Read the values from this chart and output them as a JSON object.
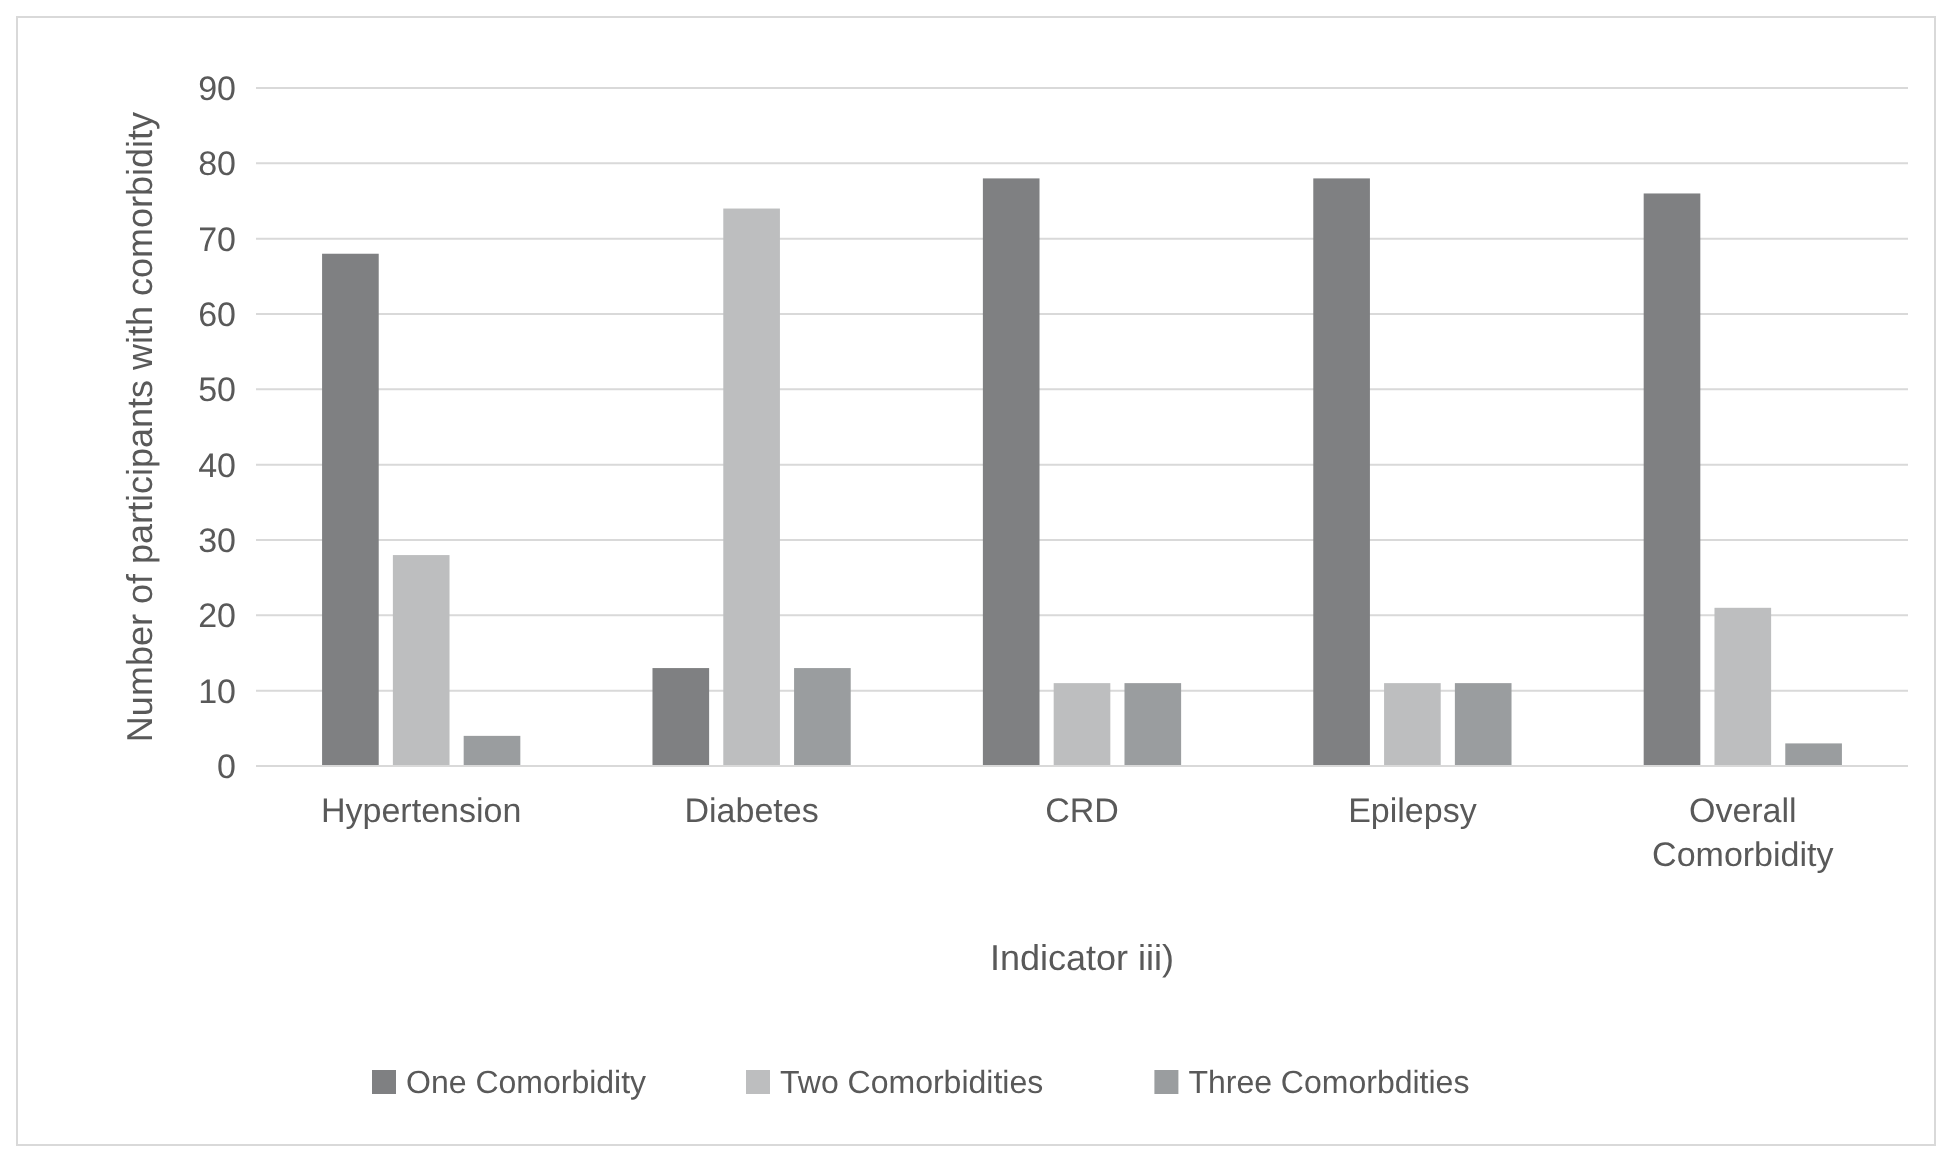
{
  "chart_data": {
    "type": "bar",
    "xlabel": "Indicator iii)",
    "ylabel": "Number of participants with comorbidity",
    "categories": [
      "Hypertension",
      "Diabetes",
      "CRD",
      "Epilepsy",
      "Overall Comorbidity"
    ],
    "series": [
      {
        "name": "One Comorbidity",
        "color": "#7f8082",
        "values": [
          68,
          13,
          78,
          78,
          76
        ]
      },
      {
        "name": "Two Comorbidities",
        "color": "#bdbebf",
        "values": [
          28,
          74,
          11,
          11,
          21
        ]
      },
      {
        "name": "Three Comorbdities",
        "color": "#9a9d9f",
        "values": [
          4,
          13,
          11,
          11,
          3
        ]
      }
    ],
    "ylim": [
      0,
      90
    ],
    "yticks": [
      0,
      10,
      20,
      30,
      40,
      50,
      60,
      70,
      80,
      90
    ],
    "grid": "y",
    "legend": "bottom"
  }
}
